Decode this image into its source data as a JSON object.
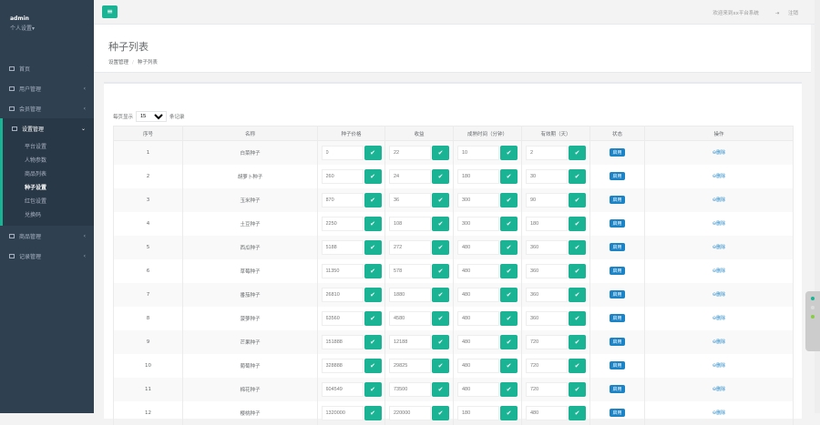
{
  "sidebar": {
    "user": "admin",
    "profile": "个人设置▾",
    "items": [
      {
        "label": "首页"
      },
      {
        "label": "用户管理"
      },
      {
        "label": "会员管理"
      },
      {
        "label": "设置管理"
      },
      {
        "label": "商品管理"
      },
      {
        "label": "记录管理"
      }
    ],
    "sub_items": [
      "平台设置",
      "人物参数",
      "商品列表",
      "种子设置",
      "红包设置",
      "兑换码"
    ],
    "active_sub": "种子设置"
  },
  "topbar": {
    "welcome": "欢迎来到xx平台系统",
    "logout": "注销"
  },
  "header": {
    "title": "种子列表",
    "breadcrumb": [
      "设置管理",
      "种子列表"
    ]
  },
  "table_controls": {
    "prefix": "每页显示",
    "page_size": "15",
    "suffix": "条记录"
  },
  "table": {
    "columns": [
      "序号",
      "名称",
      "种子价格",
      "收益",
      "成熟时间（分钟）",
      "有效期（天）",
      "状态",
      "操作"
    ],
    "rows": [
      [
        "1",
        "白菜种子",
        "0",
        "22",
        "10",
        "2"
      ],
      [
        "2",
        "胡萝卜种子",
        "260",
        "24",
        "180",
        "30"
      ],
      [
        "3",
        "玉米种子",
        "870",
        "36",
        "300",
        "90"
      ],
      [
        "4",
        "土豆种子",
        "2250",
        "108",
        "300",
        "180"
      ],
      [
        "5",
        "西瓜种子",
        "5188",
        "272",
        "480",
        "360"
      ],
      [
        "6",
        "草莓种子",
        "11350",
        "578",
        "480",
        "360"
      ],
      [
        "7",
        "番茄种子",
        "26810",
        "1880",
        "480",
        "360"
      ],
      [
        "8",
        "菠萝种子",
        "63560",
        "4580",
        "480",
        "360"
      ],
      [
        "9",
        "芒果种子",
        "151888",
        "12188",
        "480",
        "720"
      ],
      [
        "10",
        "葡萄种子",
        "328888",
        "29825",
        "480",
        "720"
      ],
      [
        "11",
        "棉花种子",
        "604549",
        "73500",
        "480",
        "720"
      ],
      [
        "12",
        "樱桃种子",
        "1320000",
        "220000",
        "180",
        "480"
      ]
    ],
    "status_label": "启用",
    "action_label": "删除"
  },
  "colors": {
    "sidebar": "#2f4050",
    "primary": "#1ab394",
    "info": "#1c84c6"
  }
}
